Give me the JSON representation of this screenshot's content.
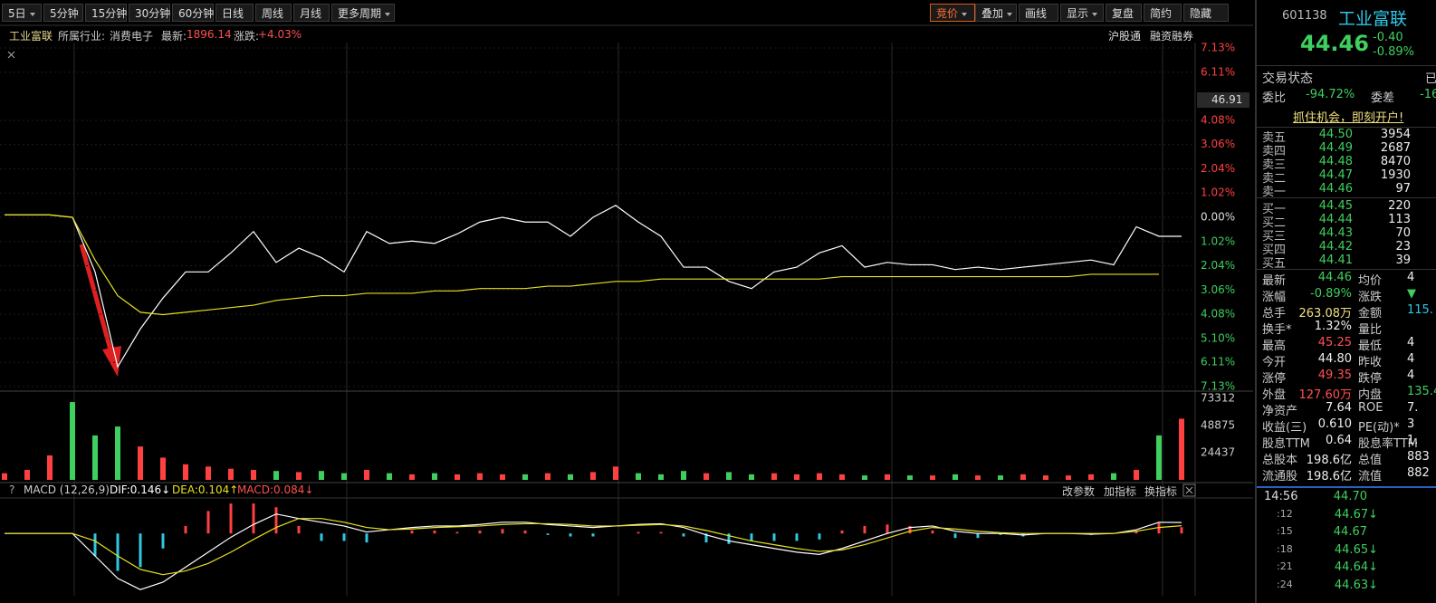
{
  "toolbar": {
    "left": [
      "5日",
      "5分钟",
      "15分钟",
      "30分钟",
      "60分钟",
      "日线",
      "周线",
      "月线",
      "更多周期"
    ],
    "right": [
      "竞价",
      "叠加",
      "画线",
      "显示",
      "复盘",
      "简约",
      "隐藏"
    ]
  },
  "info": {
    "name": "工业富联",
    "industry_label": "所属行业:",
    "industry": "消费电子",
    "latest_label": "最新:",
    "latest": "1896.14",
    "change_label": "涨跌:",
    "change": "+4.03%",
    "tags": [
      "沪股通",
      "融资融券"
    ],
    "cursor_price": "46.91"
  },
  "macd_header": {
    "help": "?",
    "title": "MACD (12,26,9)",
    "dif": "DIF:0.146↓",
    "dea": "DEA:0.104↑",
    "macd": "MACD:0.084↓",
    "buttons": [
      "改参数",
      "加指标",
      "换指标"
    ]
  },
  "chart_data": [
    {
      "type": "line",
      "series": [
        {
          "color": "#ffffff",
          "values": [
            0.1,
            0.1,
            0.1,
            0.0,
            -2.3,
            -6.3,
            -4.7,
            -3.4,
            -2.3,
            -2.3,
            -1.5,
            -0.6,
            -1.9,
            -1.3,
            -1.7,
            -2.3,
            -0.6,
            -1.1,
            -1.0,
            -1.1,
            -0.7,
            -0.2,
            0.0,
            -0.2,
            -0.2,
            -0.8,
            0.0,
            0.5,
            -0.2,
            -0.8,
            -2.1,
            -2.1,
            -2.7,
            -3.0,
            -2.3,
            -2.1,
            -1.5,
            -1.2,
            -2.1,
            -1.9,
            -2.0,
            -2.0,
            -2.2,
            -2.1,
            -2.2,
            -2.1,
            -2.0,
            -1.9,
            -1.8,
            -2.0,
            -0.4,
            -0.8,
            -0.8
          ]
        },
        {
          "color": "#e8e020",
          "values": [
            0.1,
            0.1,
            0.1,
            0.0,
            -1.8,
            -3.3,
            -4.0,
            -4.1,
            -4.0,
            -3.9,
            -3.8,
            -3.7,
            -3.5,
            -3.4,
            -3.3,
            -3.3,
            -3.2,
            -3.2,
            -3.2,
            -3.1,
            -3.1,
            -3.0,
            -3.0,
            -3.0,
            -2.9,
            -2.9,
            -2.8,
            -2.7,
            -2.7,
            -2.6,
            -2.6,
            -2.6,
            -2.6,
            -2.6,
            -2.6,
            -2.6,
            -2.6,
            -2.5,
            -2.5,
            -2.5,
            -2.5,
            -2.5,
            -2.5,
            -2.5,
            -2.5,
            -2.5,
            -2.5,
            -2.5,
            -2.4,
            -2.4,
            -2.4,
            -2.4,
            null
          ]
        }
      ],
      "ylim": [
        -7.13,
        7.13
      ],
      "yticks": [
        {
          "value": 7.13,
          "label": "7.13%"
        },
        {
          "value": 6.11,
          "label": "6.11%"
        },
        {
          "value": 4.08,
          "label": "4.08%"
        },
        {
          "value": 3.06,
          "label": "3.06%"
        },
        {
          "value": 2.04,
          "label": "2.04%"
        },
        {
          "value": 1.02,
          "label": "1.02%"
        },
        {
          "value": 0,
          "label": "0.00%"
        },
        {
          "value": -1.02,
          "label": "1.02%"
        },
        {
          "value": -2.04,
          "label": "2.04%"
        },
        {
          "value": -3.06,
          "label": "3.06%"
        },
        {
          "value": -4.08,
          "label": "4.08%"
        },
        {
          "value": -5.1,
          "label": "5.10%"
        },
        {
          "value": -6.11,
          "label": "6.11%"
        },
        {
          "value": -7.13,
          "label": "7.13%"
        }
      ],
      "grid": true
    },
    {
      "type": "bar",
      "values": [
        6000,
        9000,
        22000,
        70000,
        40000,
        48000,
        30000,
        20000,
        14000,
        12000,
        10000,
        9000,
        8000,
        7000,
        8000,
        6000,
        9000,
        6000,
        5000,
        6000,
        5000,
        6000,
        5000,
        5000,
        6000,
        5000,
        7000,
        12000,
        6000,
        5000,
        8000,
        6000,
        7000,
        5000,
        6000,
        5000,
        6000,
        5000,
        4000,
        5000,
        4000,
        4000,
        5000,
        4000,
        4000,
        5000,
        4000,
        4000,
        5000,
        6000,
        9000,
        40000,
        55000
      ],
      "ylim": [
        0,
        73312
      ],
      "yticks": [
        24437,
        48875,
        73312
      ],
      "up_color": "#ff4040",
      "down_color": "#3fcf5f"
    },
    {
      "type": "macd",
      "series": [
        {
          "color": "#ffffff",
          "values": [
            0,
            0,
            0,
            0,
            -0.3,
            -0.6,
            -0.75,
            -0.65,
            -0.45,
            -0.25,
            -0.05,
            0.12,
            0.26,
            0.2,
            0.15,
            0.1,
            0.02,
            0.05,
            0.08,
            0.1,
            0.1,
            0.12,
            0.15,
            0.15,
            0.12,
            0.1,
            0.08,
            0.1,
            0.12,
            0.13,
            0.08,
            -0.02,
            -0.1,
            -0.15,
            -0.2,
            -0.25,
            -0.28,
            -0.2,
            -0.1,
            0.0,
            0.08,
            0.1,
            0.03,
            0.0,
            0.0,
            -0.02,
            0.0,
            0.0,
            -0.01,
            0.0,
            0.05,
            0.15,
            0.146
          ]
        },
        {
          "color": "#e8e020",
          "values": [
            0,
            0,
            0,
            0,
            -0.1,
            -0.3,
            -0.48,
            -0.55,
            -0.5,
            -0.4,
            -0.25,
            -0.08,
            0.08,
            0.2,
            0.2,
            0.15,
            0.08,
            0.05,
            0.06,
            0.08,
            0.09,
            0.1,
            0.12,
            0.13,
            0.13,
            0.12,
            0.1,
            0.1,
            0.11,
            0.12,
            0.1,
            0.04,
            -0.03,
            -0.1,
            -0.15,
            -0.2,
            -0.24,
            -0.22,
            -0.15,
            -0.06,
            0.03,
            0.08,
            0.06,
            0.03,
            0.01,
            0.0,
            0.0,
            0.0,
            0.0,
            0.0,
            0.03,
            0.08,
            0.104
          ]
        }
      ],
      "values": [
        0,
        0,
        0,
        0,
        -0.3,
        -0.5,
        -0.45,
        -0.2,
        0.1,
        0.3,
        0.4,
        0.4,
        0.35,
        0.1,
        -0.1,
        -0.1,
        -0.12,
        0.0,
        0.04,
        0.04,
        0.02,
        0.04,
        0.06,
        0.04,
        -0.02,
        -0.04,
        -0.04,
        0.0,
        0.02,
        0.02,
        -0.04,
        -0.12,
        -0.14,
        -0.1,
        -0.1,
        -0.1,
        -0.08,
        0.04,
        0.1,
        0.12,
        0.1,
        0.04,
        -0.06,
        -0.06,
        -0.02,
        -0.04,
        0.0,
        0.0,
        -0.02,
        0.0,
        0.04,
        0.14,
        0.084
      ],
      "ylim": [
        -0.82,
        0.45
      ],
      "up_color": "#ff4040",
      "down_color": "#30c8e0"
    }
  ],
  "panel": {
    "code": "601138",
    "name": "工业富联",
    "price": "44.46",
    "change": "-0.40",
    "pct": "-0.89%",
    "status_label": "交易状态",
    "status": "已",
    "ratio_label": "委比",
    "ratio": "-94.72%",
    "diff_label": "委差",
    "diff": "-16",
    "banner": "抓住机会，即刻开户!",
    "sells": [
      [
        "卖五",
        "44.50",
        "3954"
      ],
      [
        "卖四",
        "44.49",
        "2687"
      ],
      [
        "卖三",
        "44.48",
        "8470"
      ],
      [
        "卖二",
        "44.47",
        "1930"
      ],
      [
        "卖一",
        "44.46",
        "97"
      ]
    ],
    "buys": [
      [
        "买一",
        "44.45",
        "220"
      ],
      [
        "买二",
        "44.44",
        "113"
      ],
      [
        "买三",
        "44.43",
        "70"
      ],
      [
        "买四",
        "44.42",
        "23"
      ],
      [
        "买五",
        "44.41",
        "39"
      ]
    ],
    "stats": [
      [
        "最新",
        "44.46",
        "均价",
        "4"
      ],
      [
        "涨幅",
        "-0.89%",
        "涨跌",
        "▼"
      ],
      [
        "总手",
        "263.08万",
        "金额",
        "115."
      ],
      [
        "换手*",
        "1.32%",
        "量比"
      ],
      [
        "最高",
        "45.25",
        "最低",
        "4"
      ],
      [
        "今开",
        "44.80",
        "昨收",
        "4"
      ],
      [
        "涨停",
        "49.35",
        "跌停",
        "4"
      ],
      [
        "外盘",
        "127.60万",
        "内盘",
        "135.4"
      ],
      [
        "净资产",
        "7.64",
        "ROE",
        "7."
      ],
      [
        "收益(三)",
        "0.610",
        "PE(动)*",
        "3"
      ],
      [
        "股息TTM",
        "0.64",
        "股息率TTM",
        "1."
      ],
      [
        "总股本",
        "198.6亿",
        "总值",
        "883"
      ],
      [
        "流通股",
        "198.6亿",
        "流值",
        "882"
      ]
    ],
    "ticks": [
      [
        "14:56",
        "44.70"
      ],
      [
        ":12",
        "44.67↓"
      ],
      [
        ":15",
        "44.67"
      ],
      [
        ":18",
        "44.65↓"
      ],
      [
        ":21",
        "44.64↓"
      ],
      [
        ":24",
        "44.63↓"
      ]
    ]
  }
}
